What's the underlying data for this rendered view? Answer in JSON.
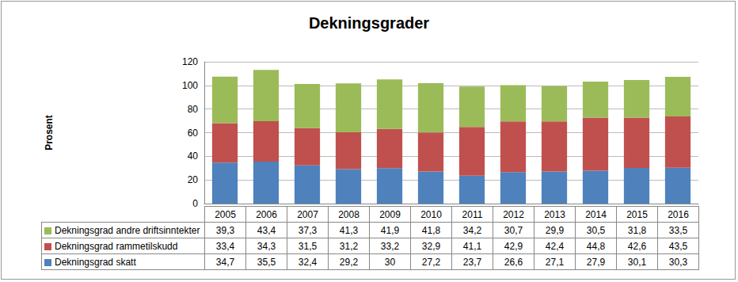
{
  "chart_data": {
    "type": "bar",
    "title": "Dekningsgrader",
    "ylabel": "Prosent",
    "categories": [
      "2005",
      "2006",
      "2007",
      "2008",
      "2009",
      "2010",
      "2011",
      "2012",
      "2013",
      "2014",
      "2015",
      "2016"
    ],
    "series": [
      {
        "name": "Dekningsgrad skatt",
        "color": "#4f81bd",
        "values": [
          34.7,
          35.5,
          32.4,
          29.2,
          30,
          27.2,
          23.7,
          26.6,
          27.1,
          27.9,
          30.1,
          30.3
        ],
        "value_labels": [
          "34,7",
          "35,5",
          "32,4",
          "29,2",
          "30",
          "27,2",
          "23,7",
          "26,6",
          "27,1",
          "27,9",
          "30,1",
          "30,3"
        ]
      },
      {
        "name": "Dekningsgrad rammetilskudd",
        "color": "#c0504d",
        "values": [
          33.4,
          34.3,
          31.5,
          31.2,
          33.2,
          32.9,
          41.1,
          42.9,
          42.4,
          44.8,
          42.6,
          43.5
        ],
        "value_labels": [
          "33,4",
          "34,3",
          "31,5",
          "31,2",
          "33,2",
          "32,9",
          "41,1",
          "42,9",
          "42,4",
          "44,8",
          "42,6",
          "43,5"
        ]
      },
      {
        "name": "Dekningsgrad andre driftsinntekter",
        "color": "#9bbb59",
        "values": [
          39.3,
          43.4,
          37.3,
          41.3,
          41.9,
          41.8,
          34.2,
          30.7,
          29.9,
          30.5,
          31.8,
          33.5
        ],
        "value_labels": [
          "39,3",
          "43,4",
          "37,3",
          "41,3",
          "41,9",
          "41,8",
          "34,2",
          "30,7",
          "29,9",
          "30,5",
          "31,8",
          "33,5"
        ]
      }
    ],
    "ylim": [
      0,
      120
    ],
    "yticks": [
      0,
      20,
      40,
      60,
      80,
      100,
      120
    ],
    "stacked": true,
    "grid": true
  }
}
